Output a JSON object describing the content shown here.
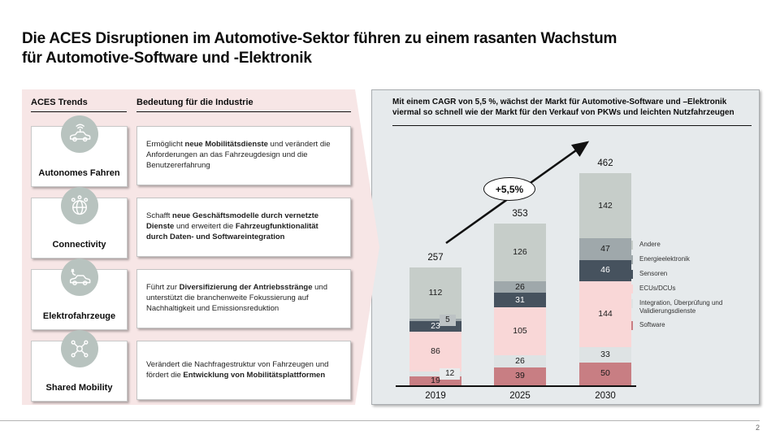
{
  "title": {
    "line1": "Die ACES Disruptionen im Automotive-Sektor führen zu einem rasanten Wachstum",
    "line2": "für Automotive-Software und -Elektronik"
  },
  "left_panel": {
    "col1_header": "ACES Trends",
    "col2_header": "Bedeutung für die Industrie",
    "rows": [
      {
        "label": "Autonomes Fahren",
        "icon": "autonomous-car-icon",
        "description": [
          {
            "text": "Ermöglicht ",
            "bold": false
          },
          {
            "text": "neue Mobilitätsdienste",
            "bold": true
          },
          {
            "text": " und verändert die Anforderungen an das Fahrzeugdesign und die Benutzererfahrung",
            "bold": false
          }
        ]
      },
      {
        "label": "Connectivity",
        "icon": "connectivity-globe-icon",
        "description": [
          {
            "text": "Schafft ",
            "bold": false
          },
          {
            "text": "neue Geschäftsmodelle durch vernetzte Dienste",
            "bold": true
          },
          {
            "text": " und erweitert die ",
            "bold": false
          },
          {
            "text": "Fahrzeugfunktionalität durch Daten- und Softwareintegration",
            "bold": true
          }
        ]
      },
      {
        "label": "Elektrofahrzeuge",
        "icon": "electric-car-icon",
        "description": [
          {
            "text": "Führt zur ",
            "bold": false
          },
          {
            "text": "Diversifizierung der Antriebsstränge",
            "bold": true
          },
          {
            "text": " und unterstützt die branchenweite Fokussierung auf Nachhaltigkeit und Emissionsreduktion",
            "bold": false
          }
        ]
      },
      {
        "label": "Shared Mobility",
        "icon": "shared-mobility-icon",
        "description": [
          {
            "text": "Verändert die Nachfragestruktur von Fahrzeugen und fördert die ",
            "bold": false
          },
          {
            "text": "Entwicklung von Mobilitätsplattformen",
            "bold": true
          }
        ]
      }
    ]
  },
  "right_panel": {
    "headline": "Mit einem CAGR von 5,5 %, wächst der Markt für Automotive-Software und –Elektronik viermal so schnell wie der Markt für den Verkauf von PKWs und leichten Nutzfahrzeugen",
    "cagr_label": "+5,5%"
  },
  "chart_data": {
    "type": "bar",
    "stacked": true,
    "categories": [
      "2019",
      "2025",
      "2030"
    ],
    "totals": [
      257,
      353,
      462
    ],
    "series": [
      {
        "name": "Software",
        "color": "#c87e83",
        "values": [
          19,
          39,
          50
        ]
      },
      {
        "name": "Integration, Überprüfung und Validierungsdienste",
        "color": "#dee3e4",
        "values": [
          12,
          26,
          33
        ]
      },
      {
        "name": "ECUs/DCUs",
        "color": "#f9d7d7",
        "values": [
          86,
          105,
          144
        ]
      },
      {
        "name": "Sensoren",
        "color": "#46525e",
        "values": [
          23,
          31,
          46
        ],
        "label_color": "#ffffff"
      },
      {
        "name": "Energieelektronik",
        "color": "#9fa8ab",
        "values": [
          5,
          26,
          47
        ]
      },
      {
        "name": "Andere",
        "color": "#c6cdc9",
        "values": [
          112,
          126,
          142
        ]
      }
    ],
    "legend_position": "right",
    "legend_order_top_to_bottom": [
      "Andere",
      "Energieelektronik",
      "Sensoren",
      "ECUs/DCUs",
      "Integration, Überprüfung und Validierungsdienste",
      "Software"
    ],
    "annotation": "+5,5%",
    "grid": false
  },
  "footer": {
    "page_number": "2"
  }
}
